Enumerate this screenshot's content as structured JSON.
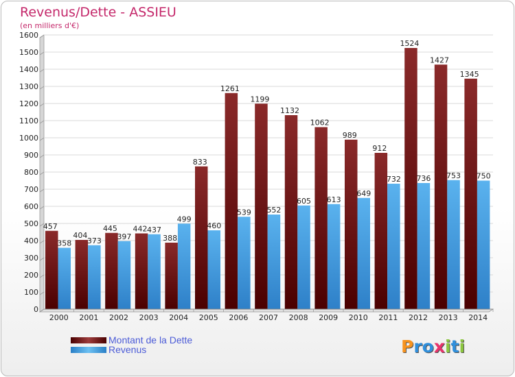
{
  "header": {
    "title": "Revenus/Dette - ASSIEU",
    "subtitle": "(en milliers d'€)"
  },
  "chart_data": {
    "type": "bar",
    "categories": [
      "2000",
      "2001",
      "2002",
      "2003",
      "2004",
      "2005",
      "2006",
      "2007",
      "2008",
      "2009",
      "2010",
      "2011",
      "2012",
      "2013",
      "2014"
    ],
    "series": [
      {
        "name": "Montant de la Dette",
        "values": [
          457,
          404,
          445,
          442,
          388,
          833,
          1261,
          1199,
          1132,
          1062,
          989,
          912,
          1524,
          1427,
          1345
        ],
        "color": "#7a1e1e"
      },
      {
        "name": "Revenus",
        "values": [
          358,
          373,
          397,
          437,
          499,
          460,
          539,
          552,
          605,
          613,
          649,
          732,
          736,
          753,
          750
        ],
        "color": "#4aa6e8"
      }
    ],
    "y_ticks": [
      "0",
      "100",
      "200",
      "300",
      "400",
      "500",
      "600",
      "700",
      "800",
      "900",
      "1000",
      "1100",
      "1200",
      "1300",
      "1400",
      "1500",
      "1600"
    ],
    "ylim": [
      0,
      1600
    ],
    "grid": true,
    "legend_position": "bottom-left"
  },
  "legend": {
    "items": [
      {
        "label": "Montant de la Dette"
      },
      {
        "label": "Revenus"
      }
    ]
  },
  "logo": {
    "letters": [
      "P",
      "r",
      "o",
      "x",
      "i",
      "t",
      "i"
    ],
    "colors": [
      "#f7931e",
      "#2f8fdc",
      "#2f8fdc",
      "#e8336b",
      "#8cc63f",
      "#2f8fdc",
      "#8cc63f"
    ]
  }
}
